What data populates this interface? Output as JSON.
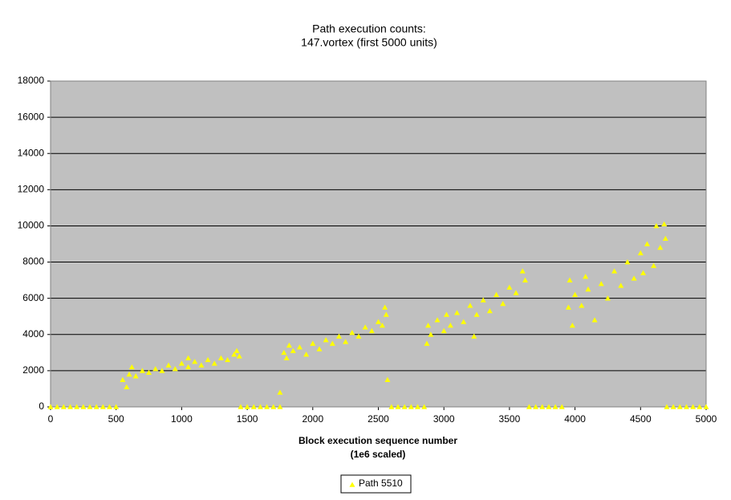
{
  "chart_data": {
    "type": "scatter",
    "title": [
      "Path execution counts:",
      "147.vortex (first 5000 units)"
    ],
    "xlabel": [
      "Block execution sequence number",
      "(1e6 scaled)"
    ],
    "xlim": [
      0,
      5000
    ],
    "xticks": [
      0,
      500,
      1000,
      1500,
      2000,
      2500,
      3000,
      3500,
      4000,
      4500,
      5000
    ],
    "ylim": [
      0,
      18000
    ],
    "yticks": [
      0,
      2000,
      4000,
      6000,
      8000,
      10000,
      12000,
      14000,
      16000,
      18000
    ],
    "grid": true,
    "legend": "bottom",
    "x": [
      0,
      50,
      100,
      150,
      200,
      250,
      300,
      350,
      400,
      450,
      500,
      1450,
      1500,
      1550,
      1600,
      1650,
      1700,
      1750,
      2600,
      2650,
      2700,
      2750,
      2800,
      2850,
      3650,
      3700,
      3750,
      3800,
      3850,
      3900,
      4700,
      4750,
      4800,
      4850,
      4900,
      4950,
      5000,
      550,
      580,
      600,
      620,
      650,
      700,
      750,
      800,
      850,
      900,
      950,
      1000,
      1050,
      1050,
      1100,
      1150,
      1200,
      1250,
      1300,
      1350,
      1400,
      1420,
      1440,
      1750,
      1780,
      1800,
      1820,
      1850,
      1900,
      1950,
      2000,
      2050,
      2100,
      2150,
      2200,
      2250,
      2300,
      2350,
      2400,
      2450,
      2500,
      2530,
      2550,
      2560,
      2570,
      2870,
      2880,
      2900,
      2950,
      3000,
      3020,
      3050,
      3100,
      3150,
      3200,
      3230,
      3250,
      3300,
      3350,
      3400,
      3450,
      3500,
      3550,
      3600,
      3620,
      3950,
      3960,
      3980,
      4000,
      4050,
      4080,
      4100,
      4150,
      4200,
      4250,
      4300,
      4350,
      4400,
      4450,
      4500,
      4520,
      4550,
      4600,
      4620,
      4650,
      4680,
      4690
    ],
    "series": [
      {
        "name": "Path 5510",
        "color": "#ffff00",
        "values": [
          0,
          0,
          0,
          0,
          0,
          0,
          0,
          0,
          0,
          0,
          0,
          0,
          0,
          0,
          0,
          0,
          0,
          0,
          0,
          0,
          0,
          0,
          0,
          0,
          0,
          0,
          0,
          0,
          0,
          0,
          0,
          0,
          0,
          0,
          0,
          0,
          0,
          1500,
          1100,
          1800,
          2200,
          1700,
          2000,
          1900,
          2100,
          2000,
          2300,
          2100,
          2400,
          2200,
          2700,
          2500,
          2300,
          2600,
          2400,
          2700,
          2600,
          2900,
          3100,
          2800,
          800,
          3000,
          2700,
          3400,
          3100,
          3300,
          2900,
          3500,
          3200,
          3700,
          3500,
          3900,
          3600,
          4100,
          3900,
          4400,
          4200,
          4700,
          4500,
          5500,
          5100,
          1500,
          3500,
          4500,
          4000,
          4800,
          4200,
          5100,
          4500,
          5200,
          4700,
          5600,
          3900,
          5100,
          5900,
          5300,
          6200,
          5700,
          6600,
          6300,
          7500,
          7000,
          5500,
          7000,
          4500,
          6200,
          5600,
          7200,
          6500,
          4800,
          6800,
          6000,
          7500,
          6700,
          8000,
          7100,
          8500,
          7400,
          9000,
          7800,
          10000,
          8800,
          10100,
          9300
        ]
      }
    ]
  }
}
